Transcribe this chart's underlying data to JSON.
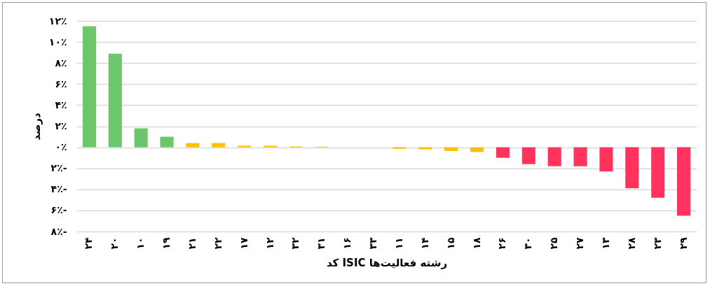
{
  "chart_data": {
    "type": "bar",
    "ylabel": "درصد",
    "xlabel": "کد ISIC رشته فعالیت‌ها",
    "categories": [
      "۲۴",
      "۲۰",
      "۱۰",
      "۱۹",
      "۲۱",
      "۲۲",
      "۱۷",
      "۱۲",
      "۳۲",
      "۳۱",
      "۱۶",
      "۳۳",
      "۱۱",
      "۱۴",
      "۱۵",
      "۱۸",
      "۲۶",
      "۳۰",
      "۲۵",
      "۲۷",
      "۱۳",
      "۲۸",
      "۲۳",
      "۲۹"
    ],
    "values": [
      11.5,
      8.9,
      1.8,
      1.0,
      0.4,
      0.4,
      0.15,
      0.15,
      0.08,
      0.05,
      0,
      0,
      -0.15,
      -0.2,
      -0.35,
      -0.45,
      -1.0,
      -1.6,
      -1.8,
      -1.8,
      -2.3,
      -3.9,
      -4.8,
      -6.5
    ],
    "colors": [
      "#6cc76c",
      "#6cc76c",
      "#6cc76c",
      "#6cc76c",
      "#ffc000",
      "#ffc000",
      "#ffc000",
      "#ffc000",
      "#ffc000",
      "#ffc000",
      "#ffc000",
      "#ffc000",
      "#ffc000",
      "#ffc000",
      "#ffc000",
      "#ffc000",
      "#ff335e",
      "#ff335e",
      "#ff335e",
      "#ff335e",
      "#ff335e",
      "#ff335e",
      "#ff335e",
      "#ff335e"
    ],
    "ylim": [
      -8,
      12
    ],
    "yticks": [
      {
        "value": 12,
        "label": "۱۲٪"
      },
      {
        "value": 10,
        "label": "۱۰٪"
      },
      {
        "value": 8,
        "label": "۸٪"
      },
      {
        "value": 6,
        "label": "۶٪"
      },
      {
        "value": 4,
        "label": "۴٪"
      },
      {
        "value": 2,
        "label": "۲٪"
      },
      {
        "value": 0,
        "label": "۰٪"
      },
      {
        "value": -2,
        "label": "۲٪-"
      },
      {
        "value": -4,
        "label": "۴٪-"
      },
      {
        "value": -6,
        "label": "۶٪-"
      },
      {
        "value": -8,
        "label": "۸٪-"
      }
    ],
    "grid": "y",
    "legend": false
  }
}
